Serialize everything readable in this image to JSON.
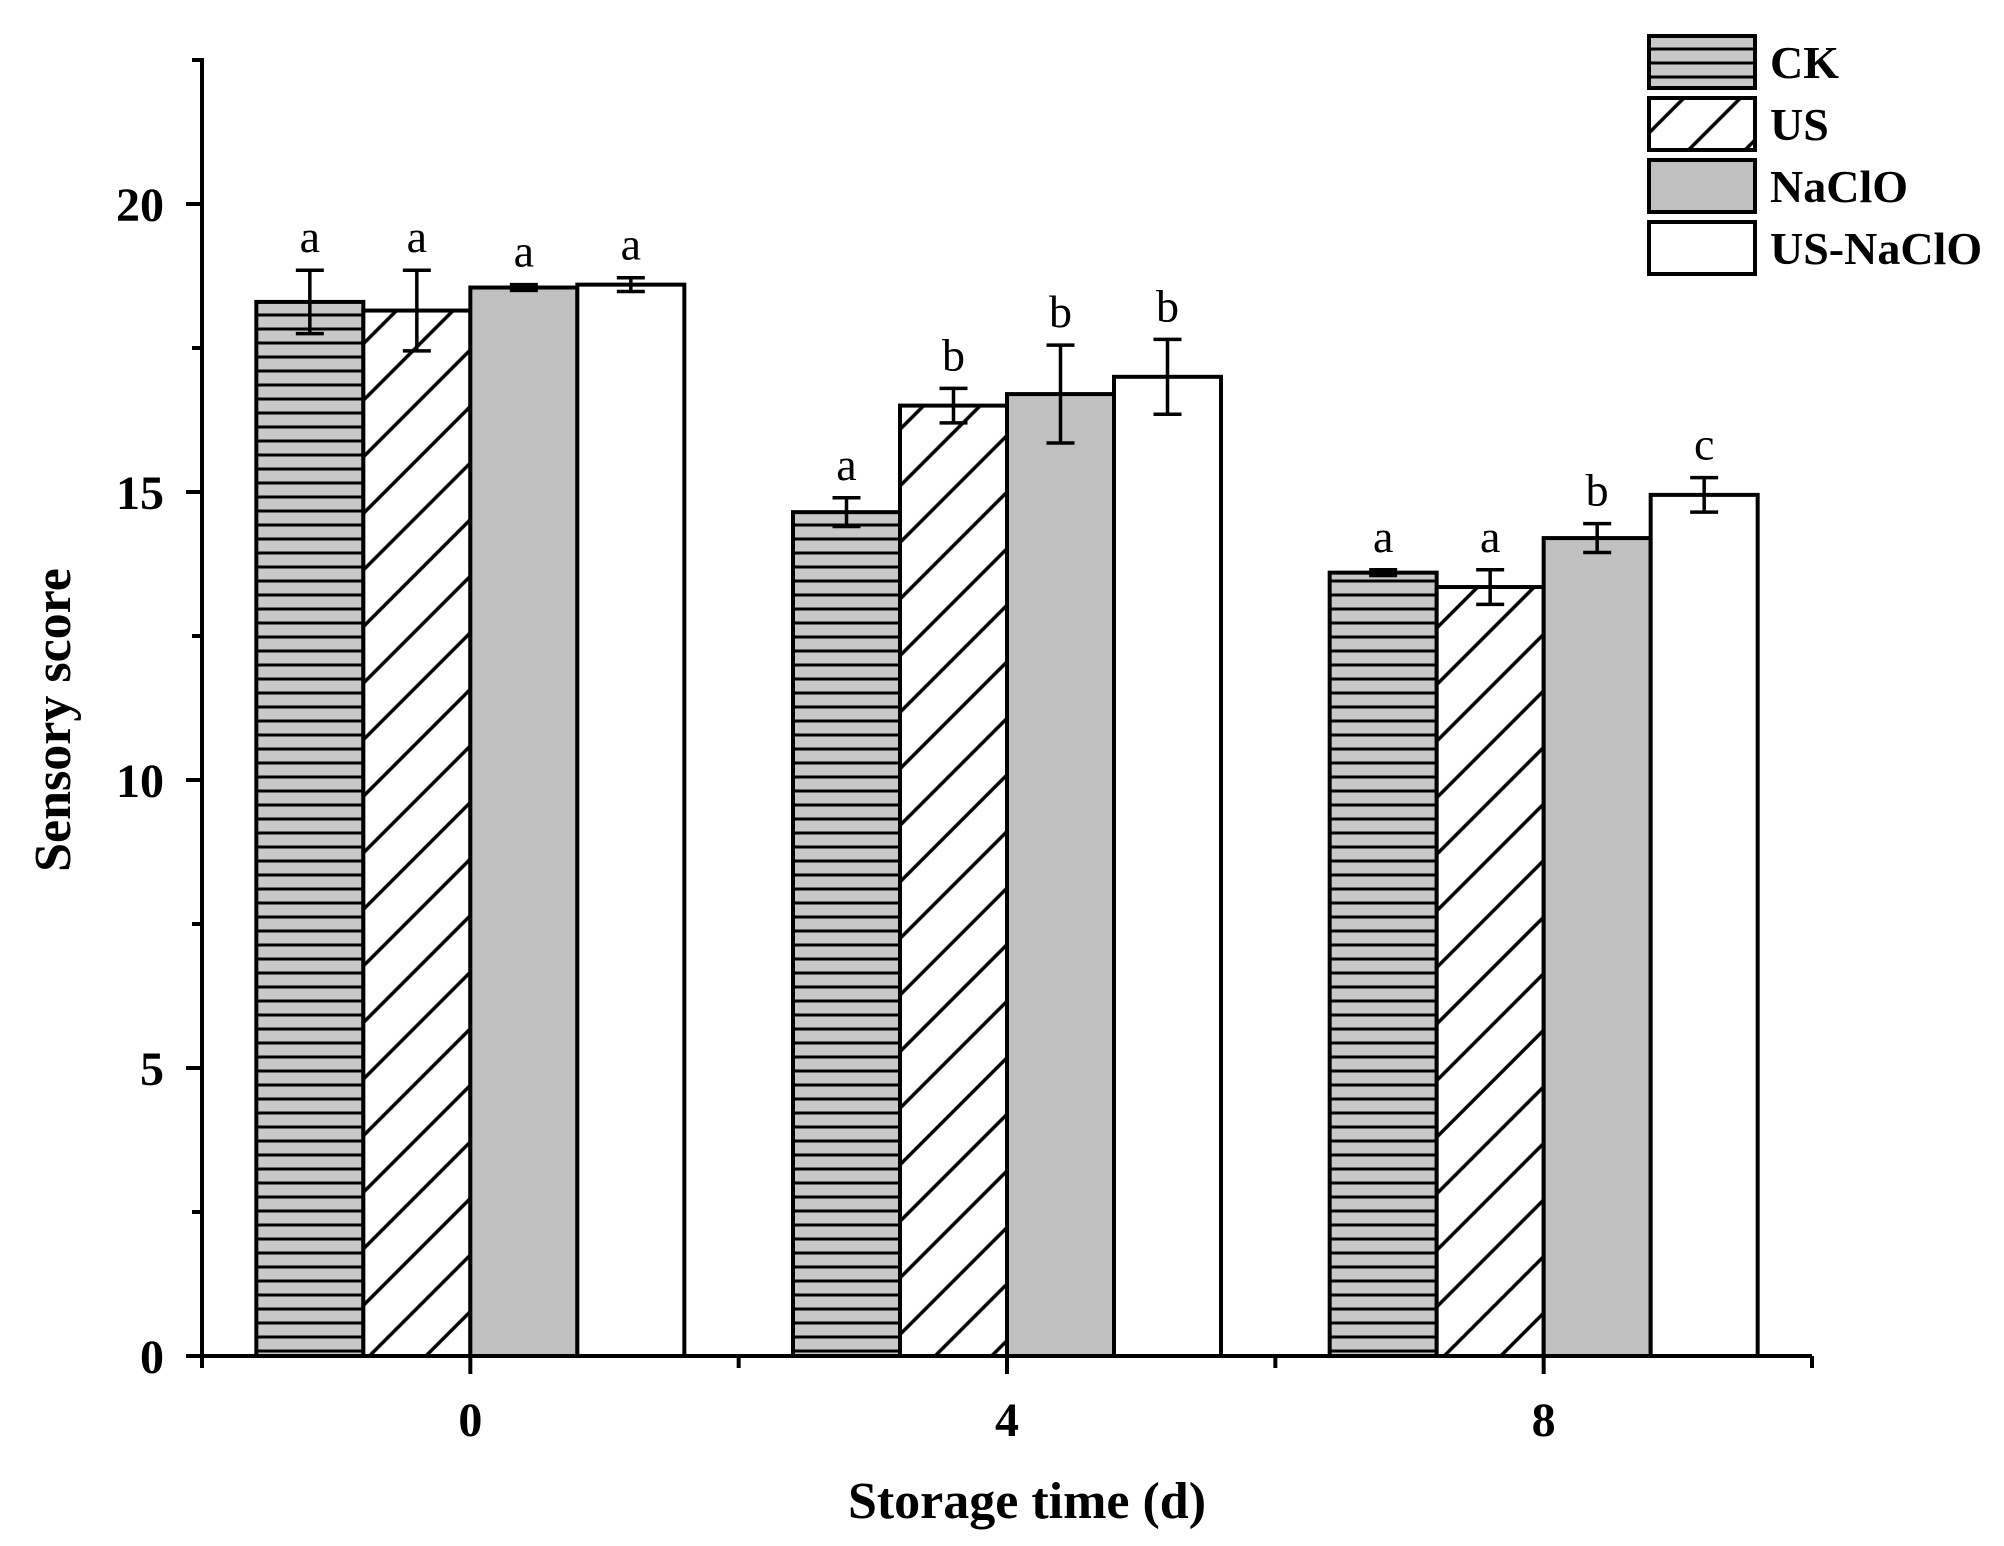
{
  "chart_data": {
    "type": "bar",
    "xlabel": "Storage time (d)",
    "ylabel": "Sensory score",
    "ylim": [
      0,
      22.5
    ],
    "yticks": [
      "0",
      "5",
      "10",
      "15",
      "20"
    ],
    "categories": [
      "0",
      "4",
      "8"
    ],
    "legend_position": "top-right",
    "series": [
      {
        "name": "CK",
        "pattern": "horizontal-lines",
        "fill": "#c8c8c8",
        "values": [
          18.3,
          14.65,
          13.6
        ],
        "errors": [
          0.55,
          0.25,
          0.05
        ],
        "labels": [
          "a",
          "a",
          "a"
        ]
      },
      {
        "name": "US",
        "pattern": "diagonal-hatch",
        "fill": "#ffffff",
        "values": [
          18.15,
          16.5,
          13.35
        ],
        "errors": [
          0.7,
          0.3,
          0.3
        ],
        "labels": [
          "a",
          "b",
          "a"
        ]
      },
      {
        "name": "NaClO",
        "pattern": "solid",
        "fill": "#c0c0c0",
        "values": [
          18.55,
          16.7,
          14.2
        ],
        "errors": [
          0.05,
          0.85,
          0.25
        ],
        "labels": [
          "a",
          "b",
          "b"
        ]
      },
      {
        "name": "US-NaClO",
        "pattern": "solid",
        "fill": "#ffffff",
        "values": [
          18.6,
          17.0,
          14.95
        ],
        "errors": [
          0.12,
          0.65,
          0.3
        ],
        "labels": [
          "a",
          "b",
          "c"
        ]
      }
    ]
  }
}
